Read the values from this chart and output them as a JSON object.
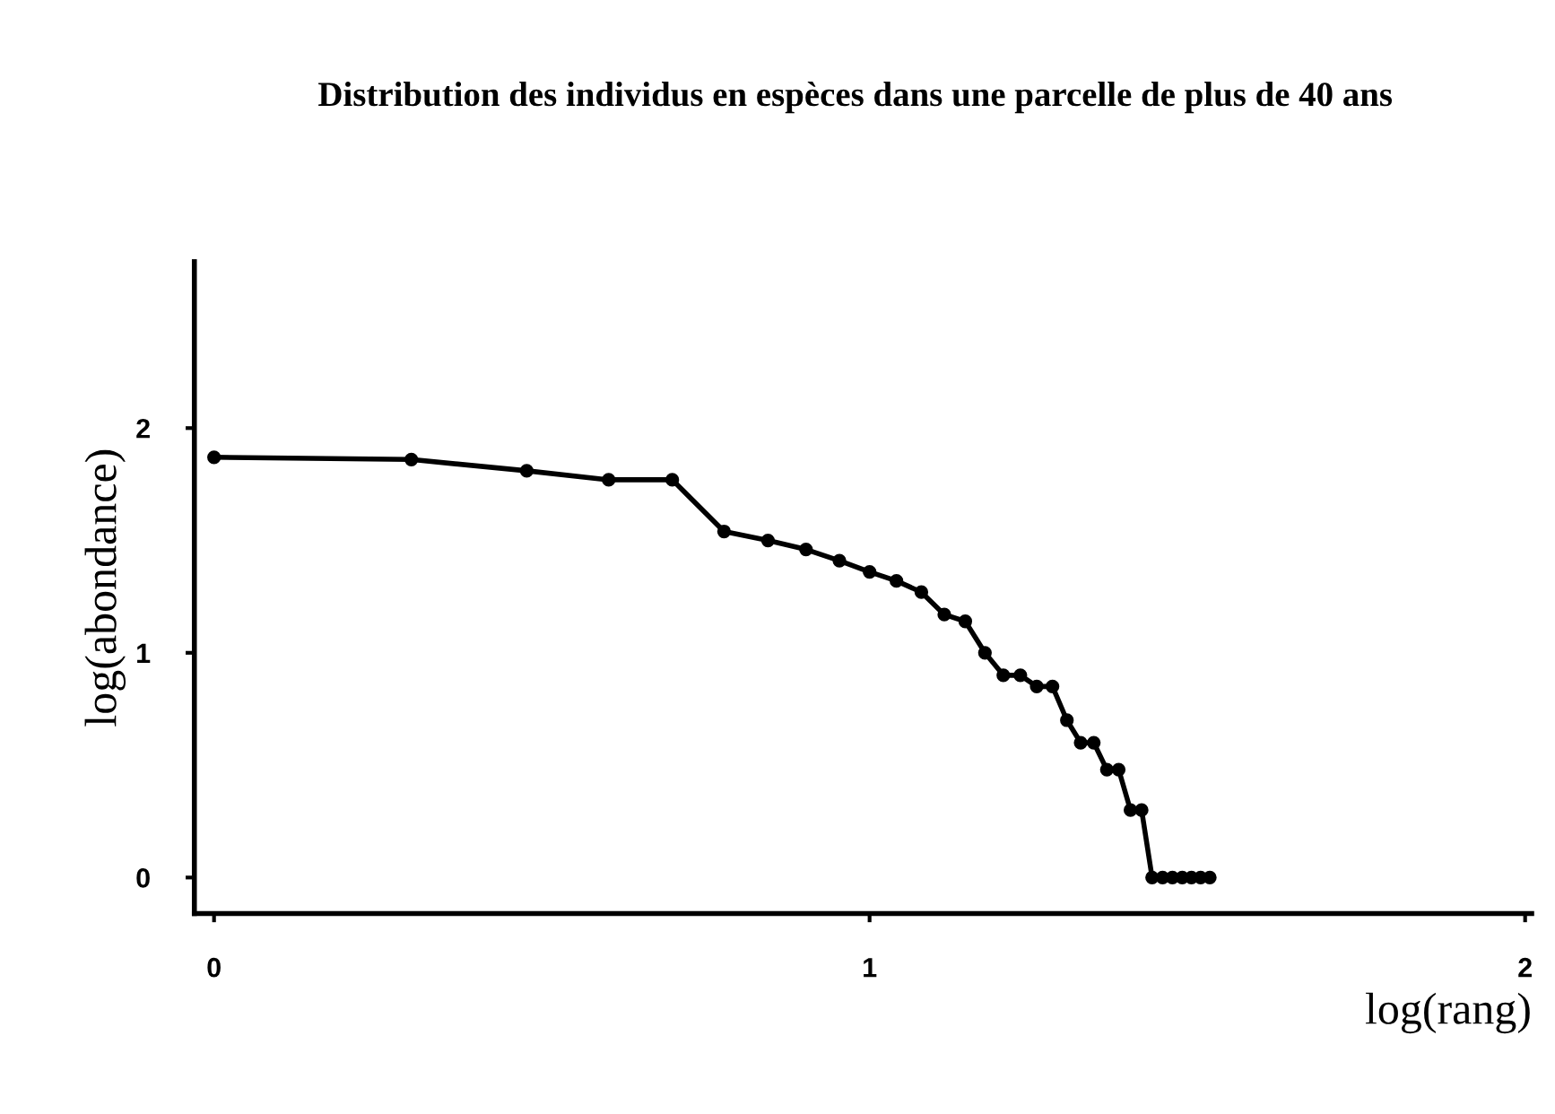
{
  "chart_data": {
    "type": "line",
    "title": "Distribution des individus en espèces dans une parcelle de plus de 40 ans",
    "xlabel": "log(rang)",
    "ylabel": "log(abondance)",
    "x": [
      0,
      0.301,
      0.477,
      0.602,
      0.699,
      0.778,
      0.845,
      0.903,
      0.954,
      1.0,
      1.041,
      1.079,
      1.114,
      1.146,
      1.176,
      1.204,
      1.23,
      1.255,
      1.279,
      1.301,
      1.322,
      1.342,
      1.362,
      1.38,
      1.398,
      1.415,
      1.431,
      1.447,
      1.462,
      1.477,
      1.491,
      1.505,
      1.519
    ],
    "series": [
      {
        "color": "#000000",
        "values": [
          1.87,
          1.86,
          1.81,
          1.77,
          1.77,
          1.54,
          1.5,
          1.46,
          1.41,
          1.36,
          1.32,
          1.27,
          1.17,
          1.14,
          1.0,
          0.9,
          0.9,
          0.85,
          0.85,
          0.7,
          0.6,
          0.6,
          0.48,
          0.48,
          0.3,
          0.3,
          0,
          0,
          0,
          0,
          0,
          0,
          0
        ]
      }
    ],
    "xlim": [
      -0.03,
      2.01
    ],
    "ylim": [
      -0.16,
      2.74
    ],
    "xticks": [
      0,
      1,
      2
    ],
    "yticks": [
      0,
      1,
      2
    ],
    "marker": "circle",
    "line_style": "solid",
    "grid": false,
    "legend": false
  }
}
